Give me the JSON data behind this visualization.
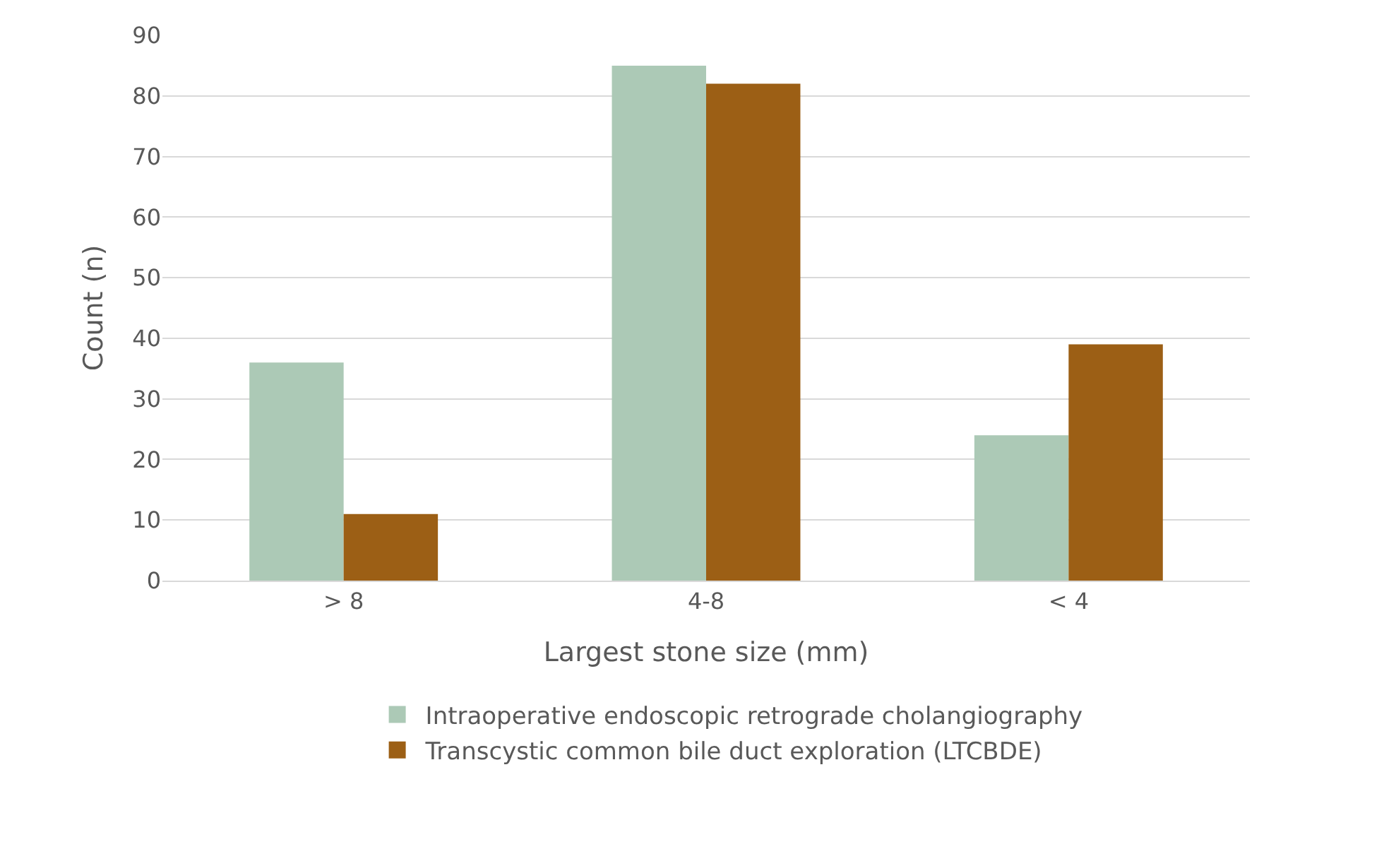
{
  "chart_data": {
    "type": "bar",
    "xlabel": "Largest stone size (mm)",
    "ylabel": "Count (n)",
    "categories": [
      "> 8",
      "4-8",
      "< 4"
    ],
    "series": [
      {
        "name": "Intraoperative endoscopic retrograde cholangiography",
        "color": "#acc9b6",
        "values": [
          36,
          85,
          24
        ]
      },
      {
        "name": "Transcystic common bile duct exploration (LTCBDE)",
        "color": "#9c5f15",
        "values": [
          11,
          82,
          39
        ]
      }
    ],
    "ylim": [
      0,
      90
    ],
    "yticks": [
      0,
      10,
      20,
      30,
      40,
      50,
      60,
      70,
      80,
      90
    ],
    "grid": "y",
    "legend": "bottom"
  }
}
